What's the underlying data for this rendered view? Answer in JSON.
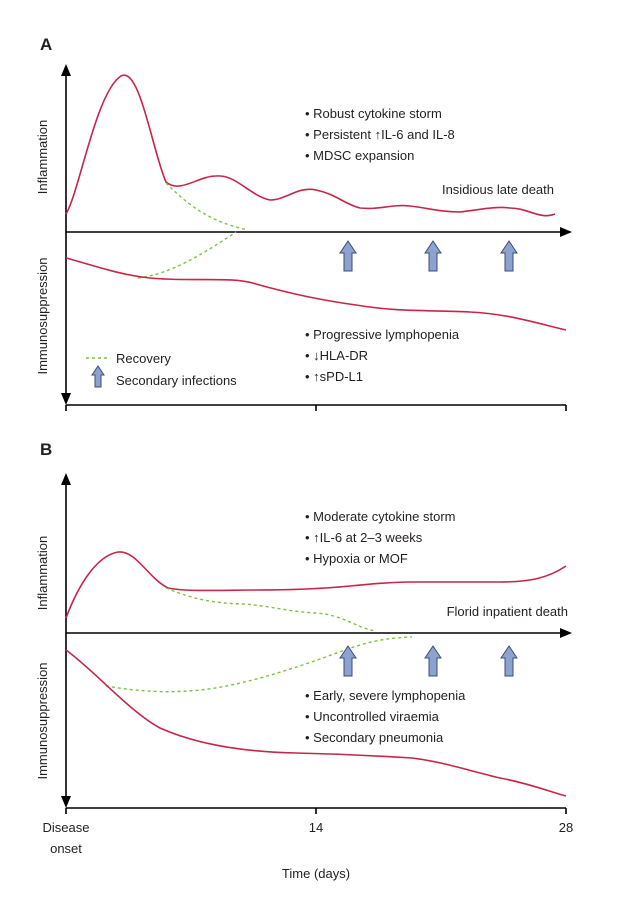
{
  "panels": [
    {
      "letter": "A",
      "y_top_label": "Inflammation",
      "y_bottom_label": "Immunosuppression",
      "outcome": "Insidious late death",
      "inflammation_notes": [
        "• Robust cytokine storm",
        "• Persistent ↑IL-6 and IL-8",
        "• MDSC expansion"
      ],
      "immuno_notes": [
        "• Progressive lymphopenia",
        "• ↓HLA-DR",
        "• ↑sPD-L1"
      ],
      "legend": {
        "recovery": "Recovery",
        "secondary": "Secondary infections"
      }
    },
    {
      "letter": "B",
      "y_top_label": "Inflammation",
      "y_bottom_label": "Immunosuppression",
      "outcome": "Florid inpatient death",
      "inflammation_notes": [
        "• Moderate cytokine storm",
        "• ↑IL-6 at 2–3 weeks",
        "• Hypoxia or MOF"
      ],
      "immuno_notes": [
        "• Early, severe lymphopenia",
        "• Uncontrolled viraemia",
        "• Secondary pneumonia"
      ]
    }
  ],
  "x_axis": {
    "ticks": [
      {
        "value": 0,
        "label_line1": "Disease",
        "label_line2": "onset"
      },
      {
        "value": 14,
        "label_line1": "14",
        "label_line2": ""
      },
      {
        "value": 28,
        "label_line1": "28",
        "label_line2": ""
      }
    ],
    "title": "Time (days)"
  },
  "colors": {
    "disease_curve": "#c8254a",
    "recovery_curve": "#7cc242",
    "infection_arrow": "#8da2cf"
  }
}
